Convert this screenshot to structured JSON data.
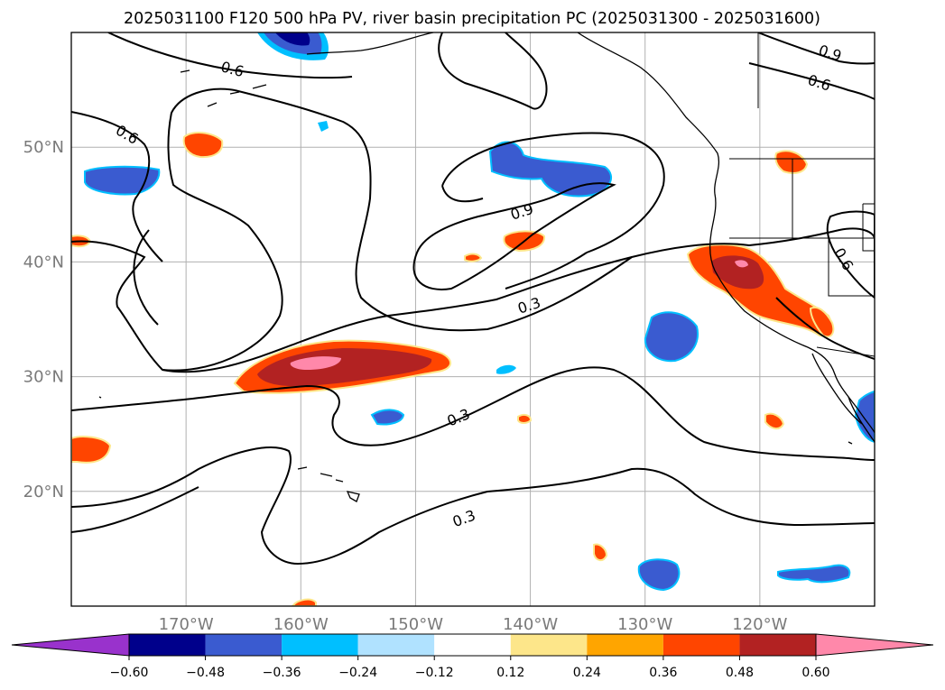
{
  "title": "2025031100 F120 500 hPa PV, river basin precipitation PC (2025031300 - 2025031600)",
  "map": {
    "lon_range": [
      -180,
      -110
    ],
    "lat_range": [
      10,
      60
    ],
    "lon_ticks": [
      {
        "lon": -170,
        "label": "170°W"
      },
      {
        "lon": -160,
        "label": "160°W"
      },
      {
        "lon": -150,
        "label": "150°W"
      },
      {
        "lon": -140,
        "label": "140°W"
      },
      {
        "lon": -130,
        "label": "130°W"
      },
      {
        "lon": -120,
        "label": "120°W"
      }
    ],
    "lat_ticks": [
      {
        "lat": 20,
        "label": "20°N"
      },
      {
        "lat": 30,
        "label": "30°N"
      },
      {
        "lat": 40,
        "label": "40°N"
      },
      {
        "lat": 50,
        "label": "50°N"
      }
    ],
    "gridlines": true,
    "contour_labels": [
      "0.6",
      "0.6",
      "0.9",
      "0.3",
      "0.3",
      "0.3",
      "0.9",
      "0.6",
      "0.6"
    ]
  },
  "colorbar": {
    "extend": "both",
    "colors": [
      "#9932cc",
      "#00008b",
      "#3a5bd0",
      "#00bfff",
      "#b0e2ff",
      "#ffffff",
      "#fde68a",
      "#ffa500",
      "#ff4500",
      "#b22222",
      "#ff88aa"
    ],
    "tick_labels": [
      "−0.60",
      "−0.48",
      "−0.36",
      "−0.24",
      "−0.12",
      "0.12",
      "0.24",
      "0.36",
      "0.48",
      "0.60"
    ]
  }
}
